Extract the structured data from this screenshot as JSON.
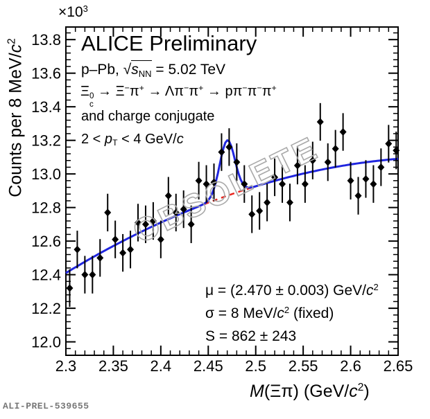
{
  "watermark": {
    "text": "OBSOLETE",
    "color": "#a9a9a9"
  },
  "footer": {
    "id": "ALI-PREL-539655"
  },
  "labels": {
    "alice": [
      {
        "t": "ALICE Preliminary"
      }
    ],
    "system": [
      {
        "t": "p–Pb, "
      },
      {
        "t": "√"
      },
      {
        "ov": [
          {
            "t": "s",
            "s": "i"
          },
          {
            "t": "NN",
            "s": "sub"
          }
        ]
      },
      {
        "t": " = 5.02 TeV"
      }
    ],
    "decay": [
      {
        "t": "Ξ"
      },
      {
        "stack": [
          "0",
          "c"
        ]
      },
      {
        "t": " → Ξ"
      },
      {
        "t": "−",
        "s": "sup"
      },
      {
        "t": "π"
      },
      {
        "t": "+",
        "s": "sup"
      },
      {
        "t": " → Λπ"
      },
      {
        "t": "−",
        "s": "sup"
      },
      {
        "t": "π"
      },
      {
        "t": "+",
        "s": "sup"
      },
      {
        "t": " → pπ"
      },
      {
        "t": "−",
        "s": "sup"
      },
      {
        "t": "π"
      },
      {
        "t": "−",
        "s": "sup"
      },
      {
        "t": "π"
      },
      {
        "t": "+",
        "s": "sup"
      }
    ],
    "conjugate": [
      {
        "t": "and charge conjugate"
      }
    ],
    "pt_range": [
      {
        "t": "2 < "
      },
      {
        "t": "p",
        "s": "i"
      },
      {
        "t": "T",
        "s": "sub"
      },
      {
        "t": " < 4 GeV/"
      },
      {
        "t": "c",
        "s": "i"
      }
    ],
    "fit_mu": [
      {
        "t": "μ = (2.470 ± 0.003) GeV/"
      },
      {
        "t": "c",
        "s": "i"
      },
      {
        "t": "2",
        "s": "sup"
      }
    ],
    "fit_sigma": [
      {
        "t": "σ = 8 MeV/"
      },
      {
        "t": "c",
        "s": "i"
      },
      {
        "t": "2",
        "s": "sup"
      },
      {
        "t": " (fixed)"
      }
    ],
    "fit_yield": [
      {
        "t": "S = 862 ± 243"
      }
    ],
    "xaxis": [
      {
        "t": "M",
        "s": "i"
      },
      {
        "t": "(Ξπ) (GeV/"
      },
      {
        "t": "c",
        "s": "i"
      },
      {
        "t": "2",
        "s": "sup"
      },
      {
        "t": ")"
      }
    ],
    "yaxis": [
      {
        "t": "Counts per 8 MeV/"
      },
      {
        "t": "c",
        "s": "i"
      },
      {
        "t": "2",
        "s": "sup"
      }
    ],
    "multiplier": [
      {
        "t": "×10"
      },
      {
        "t": "3",
        "s": "sup"
      }
    ]
  },
  "chart_data": {
    "type": "scatter",
    "title": "ALICE Preliminary",
    "subtitle": "p–Pb, √s_NN = 5.02 TeV",
    "decay_chain": "Ξc0 → Ξ−π+ → Λπ−π+ → pπ−π−π+ and charge conjugate",
    "pt_range": "2 < pT < 4 GeV/c",
    "xlabel": "M(Ξπ) (GeV/c²)",
    "ylabel": "Counts per 8 MeV/c²",
    "y_multiplier": "×10³",
    "xlim": [
      2.3,
      2.65
    ],
    "ylim": [
      11.92,
      13.875
    ],
    "grid": false,
    "x_ticks": {
      "values": [
        2.3,
        2.35,
        2.4,
        2.45,
        2.5,
        2.55,
        2.6,
        2.65
      ],
      "labels": [
        "2.3",
        "2.35",
        "2.4",
        "2.45",
        "2.5",
        "2.55",
        "2.6",
        "2.65"
      ],
      "minor_step": 0.01
    },
    "y_ticks": {
      "values": [
        12.0,
        12.2,
        12.4,
        12.6,
        12.8,
        13.0,
        13.2,
        13.4,
        13.6,
        13.8
      ],
      "labels": [
        "12.0",
        "12.2",
        "12.4",
        "12.6",
        "12.8",
        "13.0",
        "13.2",
        "13.4",
        "13.6",
        "13.8"
      ],
      "minor_step": 0.04
    },
    "bin_width_gev": 0.008,
    "points": {
      "units": "10^3 counts",
      "color": "#000000",
      "x": [
        2.304,
        2.312,
        2.32,
        2.328,
        2.336,
        2.344,
        2.352,
        2.36,
        2.368,
        2.376,
        2.384,
        2.392,
        2.4,
        2.408,
        2.416,
        2.424,
        2.432,
        2.44,
        2.448,
        2.456,
        2.464,
        2.472,
        2.48,
        2.488,
        2.496,
        2.504,
        2.512,
        2.52,
        2.528,
        2.536,
        2.544,
        2.552,
        2.56,
        2.568,
        2.576,
        2.584,
        2.592,
        2.6,
        2.608,
        2.616,
        2.624,
        2.632,
        2.64,
        2.648
      ],
      "y": [
        12.32,
        12.55,
        12.4,
        12.4,
        12.5,
        12.77,
        12.61,
        12.53,
        12.55,
        12.71,
        12.7,
        12.72,
        12.61,
        12.87,
        12.77,
        12.79,
        12.7,
        12.96,
        12.94,
        12.95,
        13.13,
        13.16,
        13.07,
        12.94,
        12.76,
        12.78,
        12.83,
        12.98,
        12.94,
        12.83,
        13.05,
        12.94,
        13.08,
        13.31,
        13.07,
        13.15,
        13.25,
        12.96,
        12.87,
        12.97,
        12.94,
        13.04,
        13.18,
        13.14
      ],
      "y_err": 0.112,
      "y_err_note": "Poisson, ~±112 counts"
    },
    "fit": {
      "color": "#2026df",
      "mu": 2.47,
      "sigma": 0.008,
      "amplitude": 0.33,
      "peak_value": 13.2,
      "background_poly": {
        "c0": 12.41,
        "c1": 1.2,
        "c2": -0.52,
        "t": "(m - 2.3) / 0.35"
      },
      "signal_region": [
        2.437,
        2.503
      ],
      "background_dash_color": "#e8251f"
    },
    "stats_box": {
      "mu": "μ = (2.470 ± 0.003) GeV/c²",
      "sigma": "σ = 8 MeV/c² (fixed)",
      "signal": "S = 862 ± 243"
    }
  }
}
